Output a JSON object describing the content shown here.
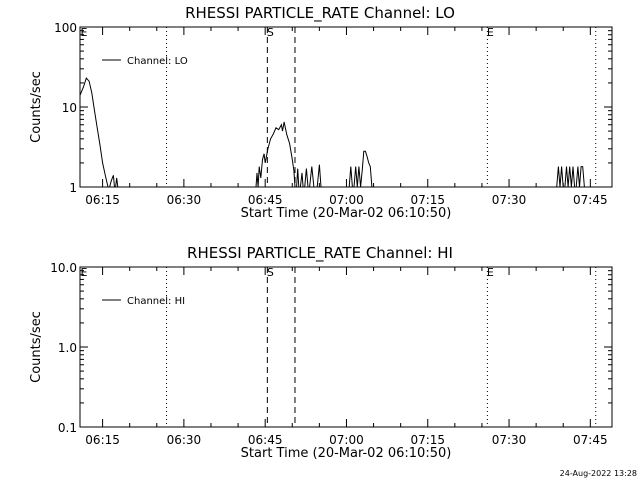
{
  "chart_data": [
    {
      "type": "line",
      "title": "RHESSI PARTICLE_RATE Channel: LO",
      "xlabel": "Start Time (20-Mar-02 06:10:50)",
      "ylabel": "Counts/sec",
      "y_scale": "log",
      "ylim": [
        1,
        100
      ],
      "xlim_minutes": [
        10.83,
        109.0
      ],
      "y_tick_labels": [
        "1",
        "10",
        "100"
      ],
      "y_tick_values": [
        1,
        10,
        100
      ],
      "x_tick_labels": [
        "06:15",
        "06:30",
        "06:45",
        "07:00",
        "07:15",
        "07:30",
        "07:45"
      ],
      "x_tick_minutes": [
        15,
        30,
        45,
        60,
        75,
        90,
        105
      ],
      "legend": {
        "label": "Channel: LO",
        "position": "top-left"
      },
      "markers": [
        {
          "label": "E",
          "minute": 11.0,
          "style": "none"
        },
        {
          "label": "",
          "minute": 26.8,
          "style": "dotted"
        },
        {
          "label": "S",
          "minute": 45.4,
          "style": "dashed"
        },
        {
          "label": "",
          "minute": 50.5,
          "style": "dashed"
        },
        {
          "label": "E",
          "minute": 86.0,
          "style": "dotted"
        },
        {
          "label": "",
          "minute": 106.0,
          "style": "dotted"
        }
      ],
      "series": [
        {
          "values_x": [
            10.83,
            11.5,
            12.0,
            12.5,
            13.0,
            13.5,
            14.0,
            14.5,
            15.0,
            15.5,
            16.0,
            16.3,
            16.6,
            17.0,
            17.2,
            17.4,
            17.6,
            17.8,
            18.0,
            43.3,
            43.5,
            43.7,
            43.9,
            44.2,
            44.5,
            44.8,
            45.0,
            45.5,
            46.0,
            46.5,
            47.0,
            47.5,
            48.0,
            48.2,
            48.5,
            49.0,
            49.5,
            50.0,
            50.3,
            50.5,
            50.8,
            51.0,
            51.2,
            51.5,
            51.8,
            52.0,
            52.3,
            52.6,
            52.9,
            53.2,
            53.6,
            54.0,
            54.3,
            54.6,
            55.0,
            55.3,
            60.5,
            60.8,
            61.1,
            61.4,
            61.7,
            62.0,
            62.3,
            62.6,
            62.9,
            63.2,
            63.5,
            63.8,
            64.1,
            64.4,
            64.7,
            98.8,
            99.1,
            99.4,
            99.7,
            100.0,
            100.3,
            100.6,
            100.9,
            101.2,
            101.5,
            101.8,
            102.1,
            102.4,
            102.7,
            103.0,
            103.3,
            103.6,
            103.9
          ],
          "values": [
            14,
            18,
            23,
            21,
            15,
            9,
            5.5,
            3.4,
            2.0,
            1.4,
            1.0,
            1.0,
            1.2,
            1.4,
            1.0,
            1.0,
            1.3,
            1.0,
            1.0,
            1.0,
            1.5,
            1.0,
            1.8,
            1.3,
            2.2,
            2.6,
            2.0,
            3.0,
            4.0,
            4.6,
            5.5,
            5.2,
            6.0,
            5.0,
            6.5,
            4.5,
            3.5,
            2.2,
            1.6,
            1.0,
            1.0,
            1.7,
            1.0,
            1.0,
            1.5,
            1.0,
            1.0,
            1.7,
            1.0,
            1.0,
            1.8,
            1.0,
            1.0,
            1.0,
            1.9,
            1.0,
            1.0,
            1.8,
            1.0,
            1.0,
            1.8,
            1.0,
            1.8,
            1.0,
            1.6,
            2.8,
            2.8,
            2.4,
            2.0,
            1.8,
            1.0,
            1.0,
            1.8,
            1.0,
            1.8,
            1.0,
            1.0,
            1.8,
            1.0,
            1.8,
            1.0,
            1.8,
            1.0,
            1.0,
            1.8,
            1.0,
            1.8,
            1.8,
            1.0
          ]
        }
      ]
    },
    {
      "type": "line",
      "title": "RHESSI PARTICLE_RATE Channel: HI",
      "xlabel": "Start Time (20-Mar-02 06:10:50)",
      "ylabel": "Counts/sec",
      "y_scale": "log",
      "ylim": [
        0.1,
        10
      ],
      "xlim_minutes": [
        10.83,
        109.0
      ],
      "y_tick_labels": [
        "0.1",
        "1.0",
        "10.0"
      ],
      "y_tick_values": [
        0.1,
        1,
        10
      ],
      "x_tick_labels": [
        "06:15",
        "06:30",
        "06:45",
        "07:00",
        "07:15",
        "07:30",
        "07:45"
      ],
      "x_tick_minutes": [
        15,
        30,
        45,
        60,
        75,
        90,
        105
      ],
      "legend": {
        "label": "Channel: HI",
        "position": "top-left"
      },
      "markers": [
        {
          "label": "E",
          "minute": 11.0,
          "style": "none"
        },
        {
          "label": "",
          "minute": 26.8,
          "style": "dotted"
        },
        {
          "label": "S",
          "minute": 45.4,
          "style": "dashed"
        },
        {
          "label": "",
          "minute": 50.5,
          "style": "dashed"
        },
        {
          "label": "E",
          "minute": 86.0,
          "style": "dotted"
        },
        {
          "label": "",
          "minute": 106.0,
          "style": "dotted"
        }
      ],
      "series": [
        {
          "values_x": [],
          "values": []
        }
      ]
    }
  ],
  "footer": {
    "date_stamp": "24-Aug-2022 13:28"
  }
}
